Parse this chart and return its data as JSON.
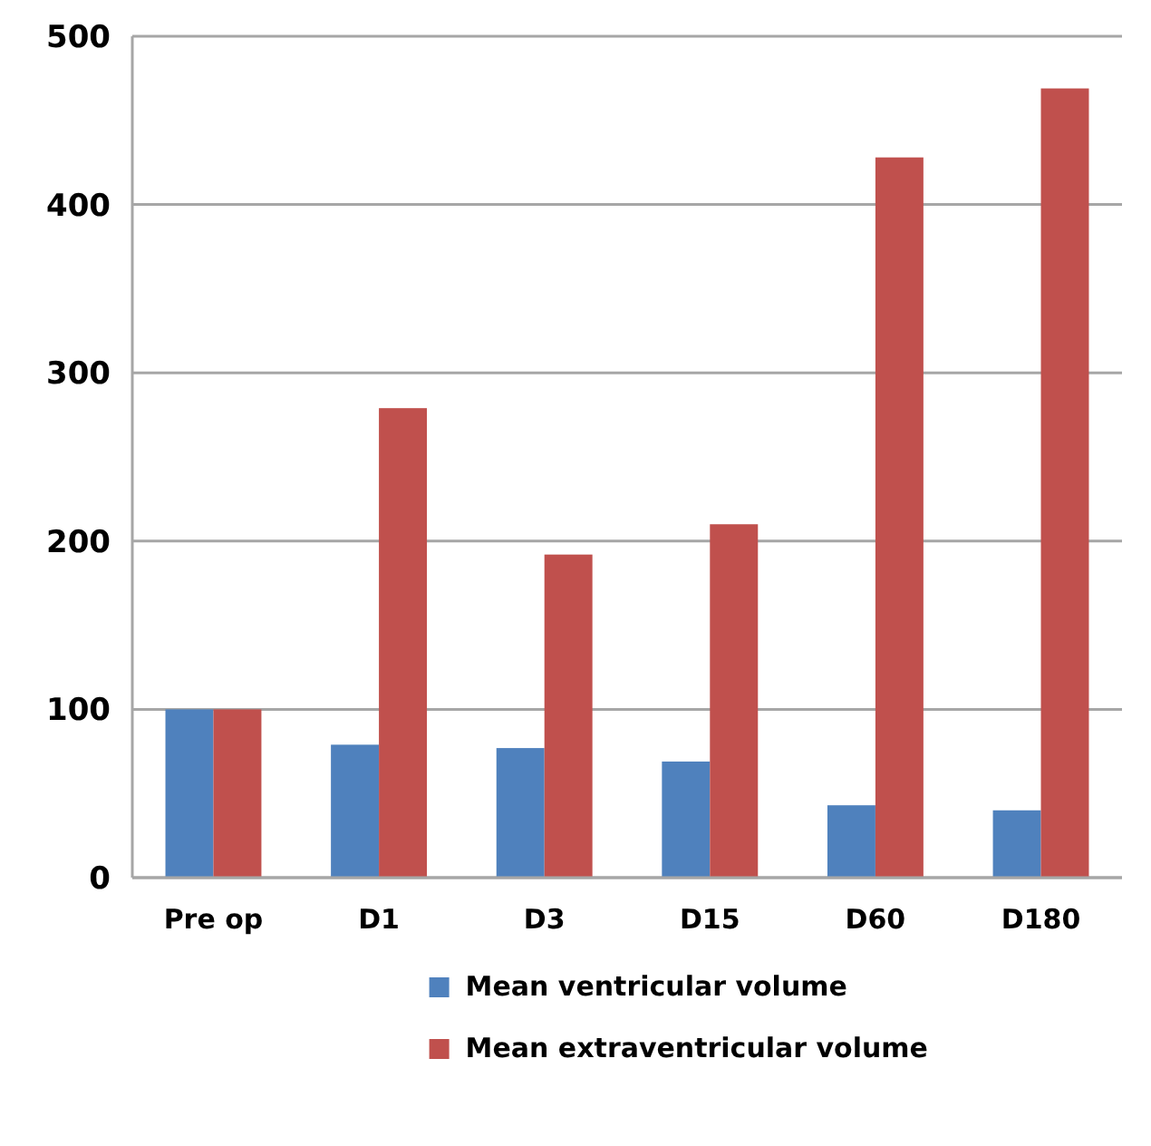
{
  "chart_data": {
    "type": "bar",
    "categories": [
      "Pre op",
      "D1",
      "D3",
      "D15",
      "D60",
      "D180"
    ],
    "series": [
      {
        "name": "Mean ventricular volume",
        "color": "#4f81bd",
        "values": [
          100,
          79,
          77,
          69,
          43,
          40
        ]
      },
      {
        "name": "Mean extraventricular volume",
        "color": "#c0504d",
        "values": [
          100,
          279,
          192,
          210,
          428,
          469
        ]
      }
    ],
    "ylim": [
      0,
      500
    ],
    "yticks": [
      0,
      100,
      200,
      300,
      400,
      500
    ],
    "grid": "y",
    "legend": "bottom"
  }
}
